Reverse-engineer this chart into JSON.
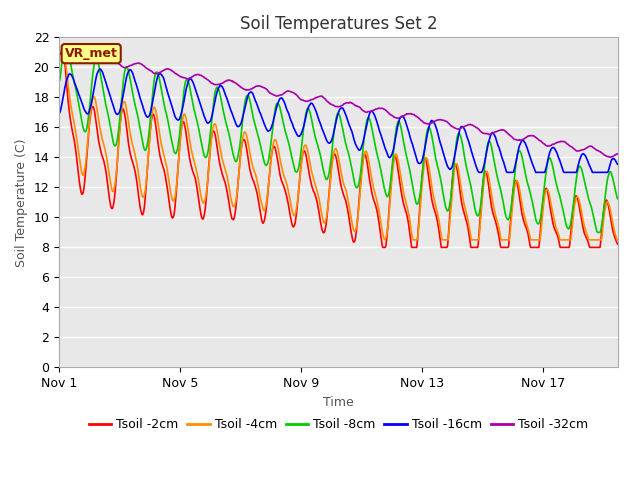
{
  "title": "Soil Temperatures Set 2",
  "xlabel": "Time",
  "ylabel": "Soil Temperature (C)",
  "ylim": [
    0,
    22
  ],
  "yticks": [
    0,
    2,
    4,
    6,
    8,
    10,
    12,
    14,
    16,
    18,
    20,
    22
  ],
  "xtick_labels": [
    "Nov 1",
    "Nov 5",
    "Nov 9",
    "Nov 13",
    "Nov 17"
  ],
  "xtick_positions": [
    0,
    4,
    8,
    12,
    16
  ],
  "total_days": 18.5,
  "background_color": "#ffffff",
  "plot_bg_color": "#e8e8e8",
  "grid_color": "#ffffff",
  "series_colors": {
    "Tsoil -2cm": "#ff0000",
    "Tsoil -4cm": "#ff8c00",
    "Tsoil -8cm": "#00cc00",
    "Tsoil -16cm": "#0000ff",
    "Tsoil -32cm": "#aa00aa"
  },
  "annotation_text": "VR_met",
  "annotation_bg": "#ffff88",
  "annotation_border": "#8b1a00",
  "title_fontsize": 12,
  "axis_label_fontsize": 9,
  "tick_fontsize": 9,
  "legend_fontsize": 9
}
